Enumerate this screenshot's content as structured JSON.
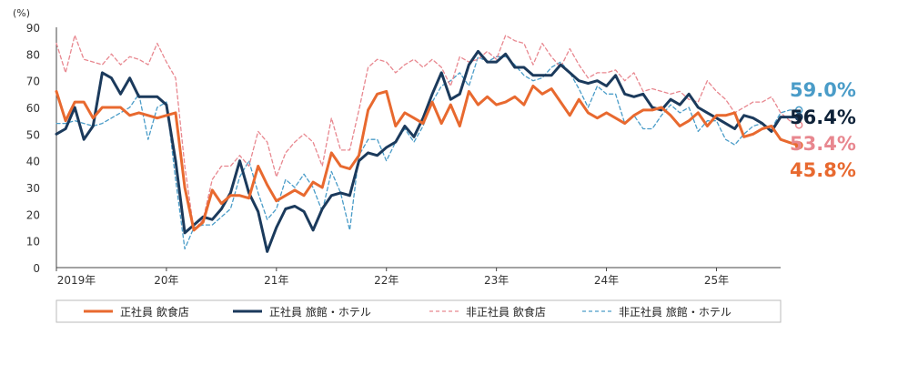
{
  "chart_data": {
    "type": "line",
    "title": "",
    "xlabel": "",
    "ylabel": "(%)",
    "ylim": [
      0,
      90
    ],
    "yticks": [
      0,
      10,
      20,
      30,
      40,
      50,
      60,
      70,
      80,
      90
    ],
    "xlim": [
      "2019-01",
      "2025-08"
    ],
    "xticks": [
      {
        "label": "2019年",
        "at": "2019-01"
      },
      {
        "label": "20年",
        "at": "2020-01"
      },
      {
        "label": "21年",
        "at": "2021-01"
      },
      {
        "label": "22年",
        "at": "2022-01"
      },
      {
        "label": "23年",
        "at": "2023-01"
      },
      {
        "label": "24年",
        "at": "2024-01"
      },
      {
        "label": "25年",
        "at": "2025-01"
      }
    ],
    "grid": false,
    "legend_position": "bottom",
    "series": [
      {
        "name": "正社員 飲食店",
        "color": "#E8692F",
        "style": "solid",
        "end_label": "45.8%",
        "values": [
          66,
          55,
          62,
          62,
          56,
          60,
          60,
          60,
          57,
          58,
          57,
          56,
          57,
          58,
          30,
          14,
          17,
          29,
          24,
          27,
          27,
          26,
          38,
          31,
          25,
          27,
          29,
          27,
          32,
          30,
          43,
          38,
          37,
          42,
          59,
          65,
          66,
          53,
          58,
          56,
          54,
          62,
          54,
          61,
          53,
          66,
          61,
          64,
          61,
          62,
          64,
          61,
          68,
          65,
          67,
          62,
          57,
          63,
          58,
          56,
          58,
          56,
          54,
          57,
          59,
          59,
          60,
          57,
          53,
          55,
          58,
          53,
          57,
          57,
          58,
          49,
          50,
          52,
          53,
          48,
          46.8,
          45.8
        ]
      },
      {
        "name": "正社員 旅館・ホテル",
        "color": "#1B3A5C",
        "style": "solid",
        "end_label": "56.4%",
        "values": [
          50,
          52,
          60,
          48,
          53,
          73,
          71,
          65,
          71,
          64,
          64,
          64,
          61,
          40,
          13,
          16,
          19,
          18,
          22,
          28,
          40,
          28,
          21,
          6,
          15,
          22,
          23,
          21,
          14,
          22,
          27,
          28,
          27,
          40,
          43,
          42,
          45,
          47,
          53,
          49,
          56,
          65,
          73,
          63,
          65,
          76,
          81,
          77,
          77,
          80,
          75,
          75,
          72,
          72,
          72,
          76,
          73,
          70,
          69,
          70,
          68,
          72,
          65,
          64,
          65,
          60,
          59,
          63,
          61,
          65,
          60,
          58,
          56,
          54,
          52,
          57,
          56,
          54,
          51,
          56.4,
          56.4,
          56.4
        ]
      },
      {
        "name": "非正社員 飲食店",
        "color": "#E8878F",
        "style": "dashed",
        "end_label": "53.4%",
        "values": [
          84,
          73,
          87,
          78,
          77,
          76,
          80,
          76,
          79,
          78,
          76,
          84,
          77,
          71,
          38,
          14,
          18,
          33,
          38,
          38,
          42,
          38,
          51,
          47,
          34,
          43,
          47,
          50,
          47,
          38,
          56,
          44,
          44,
          59,
          75,
          78,
          77,
          73,
          76,
          78,
          75,
          78,
          75,
          68,
          79,
          77,
          78,
          81,
          78,
          87,
          85,
          84,
          76,
          84,
          79,
          75,
          82,
          76,
          71,
          73,
          73,
          74,
          70,
          73,
          66,
          67,
          66,
          65,
          66,
          63,
          62,
          70,
          66,
          63,
          58,
          60,
          62,
          62,
          64,
          58,
          55,
          53.4
        ]
      },
      {
        "name": "非正社員 旅館・ホテル",
        "color": "#4A9CC8",
        "style": "dashed",
        "end_label": "59.0%",
        "values": [
          54,
          54,
          55,
          54,
          53,
          54,
          56,
          58,
          60,
          65,
          48,
          60,
          62,
          33,
          7,
          15,
          16,
          16,
          19,
          22,
          34,
          40,
          28,
          18,
          22,
          33,
          30,
          35,
          30,
          21,
          36,
          28,
          14,
          42,
          48,
          48,
          40,
          47,
          52,
          47,
          53,
          62,
          68,
          70,
          73,
          68,
          79,
          77,
          79,
          79,
          76,
          72,
          70,
          71,
          75,
          77,
          73,
          67,
          60,
          68,
          65,
          65,
          54,
          57,
          52,
          52,
          57,
          61,
          58,
          60,
          51,
          55,
          55,
          48,
          46,
          50,
          53,
          54,
          52,
          58,
          59.0,
          59.0
        ]
      }
    ]
  }
}
